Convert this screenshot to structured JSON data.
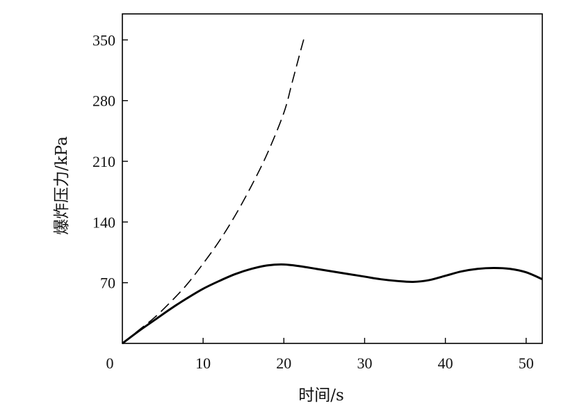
{
  "chart_data": {
    "type": "line",
    "xlabel": "时间/s",
    "ylabel": "爆炸压力/kPa",
    "xlim": [
      0,
      52
    ],
    "ylim": [
      0,
      380
    ],
    "xticks": [
      0,
      10,
      20,
      30,
      40,
      50
    ],
    "yticks": [
      70,
      140,
      210,
      280,
      350
    ],
    "grid": false,
    "series": [
      {
        "style": "solid",
        "x": [
          0,
          2,
          4,
          6,
          8,
          10,
          12,
          14,
          16,
          18,
          20,
          22,
          24,
          26,
          28,
          30,
          32,
          34,
          36,
          38,
          40,
          42,
          44,
          46,
          48,
          50,
          52
        ],
        "y": [
          0,
          14,
          27,
          40,
          52,
          63,
          72,
          80,
          86,
          90,
          91,
          89,
          86,
          83,
          80,
          77,
          74,
          72,
          71,
          73,
          78,
          83,
          86,
          87,
          86,
          82,
          74
        ]
      },
      {
        "style": "dashed",
        "x": [
          0,
          2,
          4,
          6,
          8,
          10,
          12,
          14,
          16,
          18,
          20,
          21,
          22,
          22.5
        ],
        "y": [
          0,
          15,
          30,
          48,
          68,
          92,
          118,
          148,
          182,
          220,
          266,
          300,
          335,
          352
        ]
      }
    ]
  }
}
